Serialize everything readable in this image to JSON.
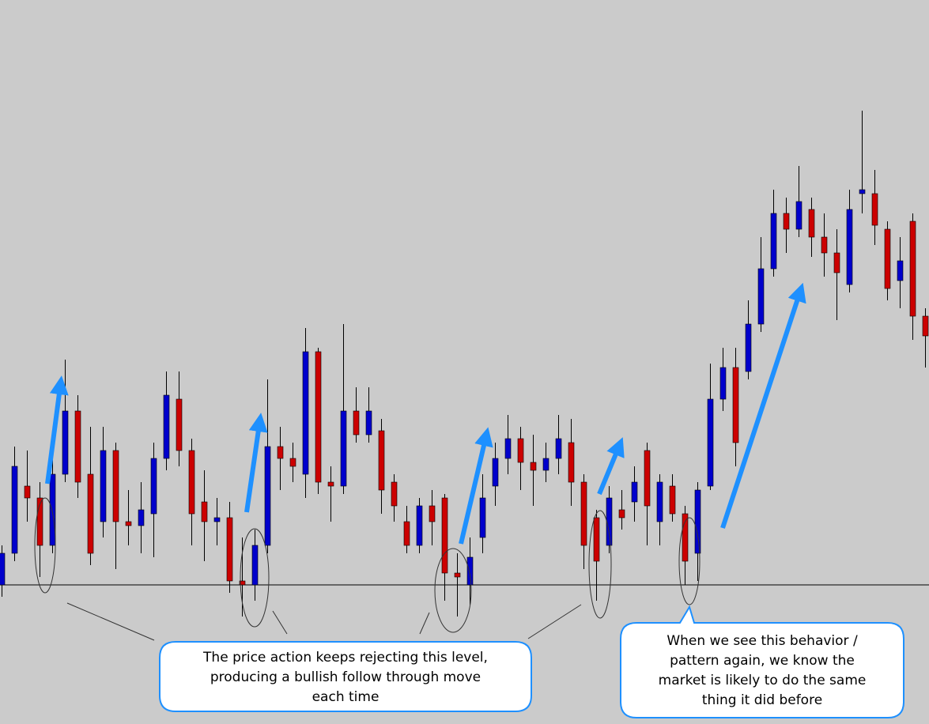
{
  "chart_data": {
    "type": "candlestick",
    "open": [
      176,
      216,
      301,
      286,
      226,
      316,
      396,
      316,
      256,
      346,
      256,
      251,
      266,
      336,
      411,
      346,
      281,
      256,
      261,
      181,
      176,
      226,
      351,
      336,
      316,
      471,
      306,
      301,
      396,
      366,
      371,
      306,
      256,
      226,
      276,
      286,
      191,
      176,
      236,
      301,
      336,
      361,
      331,
      321,
      336,
      356,
      306,
      261,
      226,
      271,
      281,
      346,
      256,
      301,
      266,
      216,
      301,
      411,
      451,
      446,
      506,
      576,
      646,
      626,
      651,
      616,
      596,
      556,
      671,
      671,
      626,
      561,
      636,
      516
    ],
    "high": [
      226,
      351,
      346,
      306,
      341,
      461,
      416,
      376,
      376,
      356,
      296,
      306,
      356,
      446,
      446,
      361,
      321,
      286,
      281,
      236,
      246,
      436,
      376,
      356,
      501,
      476,
      326,
      506,
      426,
      426,
      386,
      316,
      276,
      286,
      296,
      291,
      216,
      236,
      316,
      356,
      391,
      376,
      366,
      356,
      391,
      386,
      316,
      271,
      301,
      296,
      326,
      356,
      316,
      316,
      276,
      306,
      456,
      476,
      476,
      536,
      616,
      676,
      666,
      706,
      666,
      646,
      626,
      676,
      776,
      701,
      636,
      616,
      646,
      526
    ],
    "low": [
      161,
      206,
      256,
      186,
      216,
      306,
      286,
      201,
      236,
      196,
      226,
      216,
      211,
      321,
      326,
      226,
      206,
      226,
      166,
      136,
      156,
      216,
      296,
      306,
      286,
      291,
      256,
      291,
      356,
      356,
      266,
      256,
      216,
      216,
      226,
      156,
      136,
      151,
      216,
      276,
      316,
      296,
      276,
      306,
      316,
      276,
      196,
      156,
      216,
      246,
      256,
      226,
      226,
      256,
      176,
      181,
      296,
      396,
      326,
      436,
      496,
      566,
      596,
      616,
      591,
      566,
      511,
      546,
      646,
      606,
      536,
      526,
      486,
      451
    ],
    "close": [
      216,
      326,
      286,
      226,
      316,
      396,
      306,
      216,
      346,
      256,
      251,
      271,
      336,
      416,
      346,
      266,
      256,
      261,
      181,
      176,
      226,
      351,
      336,
      326,
      471,
      306,
      301,
      396,
      366,
      396,
      296,
      276,
      226,
      276,
      256,
      191,
      186,
      211,
      286,
      336,
      361,
      331,
      321,
      336,
      361,
      306,
      226,
      206,
      286,
      261,
      306,
      276,
      306,
      266,
      206,
      296,
      411,
      451,
      356,
      506,
      576,
      646,
      626,
      661,
      616,
      596,
      571,
      651,
      676,
      631,
      551,
      586,
      516,
      491
    ],
    "up_color": "#0000cc",
    "down_color": "#cc0000",
    "wick_color": "#000000",
    "ylim": [
      0,
      916
    ],
    "level": 176
  },
  "annotations": [
    {
      "lines": [
        "The price action keeps rejecting this level,",
        "producing a bullish follow through move",
        "each time"
      ]
    },
    {
      "lines": [
        "When we see this behavior /",
        "pattern again, we know the",
        "market is likely to do the same",
        "thing it did before"
      ]
    }
  ]
}
